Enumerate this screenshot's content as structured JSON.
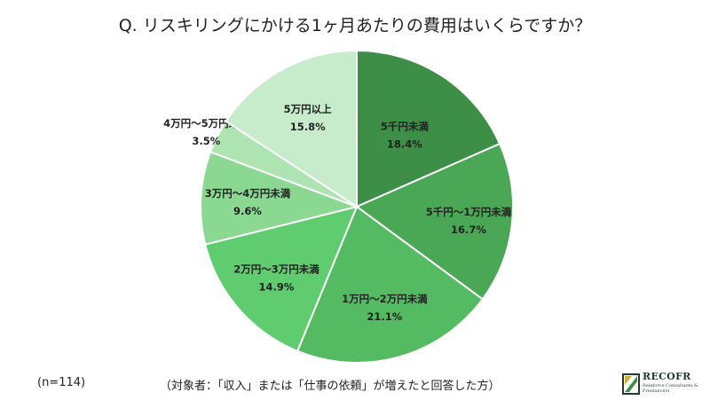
{
  "title": "Q. リスキリングにかける1ヶ月あたりの費用はいくらですか？",
  "footer": {
    "n": "(n=114)",
    "target": "（対象者：「収入」または「仕事の依頼」が増えたと回答した方）"
  },
  "logo": {
    "name": "RECOFR",
    "subtitle": "Reinforce Consultants & Freelancers"
  },
  "chart_data": {
    "type": "pie",
    "title": "Q. リスキリングにかける1ヶ月あたりの費用はいくらですか？",
    "start_angle_deg": 0,
    "direction": "clockwise",
    "slices": [
      {
        "label": "5千円未満",
        "value": 18.4,
        "value_label": "18.4%",
        "color": "#3d8f47"
      },
      {
        "label": "5千円～1万円未満",
        "value": 16.7,
        "value_label": "16.7%",
        "color": "#4aa755"
      },
      {
        "label": "1万円～2万円未満",
        "value": 21.1,
        "value_label": "21.1%",
        "color": "#55bb63"
      },
      {
        "label": "2万円～3万円未満",
        "value": 14.9,
        "value_label": "14.9%",
        "color": "#5fcc6f"
      },
      {
        "label": "3万円～4万円未満",
        "value": 9.6,
        "value_label": "9.6%",
        "color": "#8ad892"
      },
      {
        "label": "4万円～5万円未満",
        "value": 3.5,
        "value_label": "3.5%",
        "color": "#aee3b2"
      },
      {
        "label": "5万円以上",
        "value": 15.8,
        "value_label": "15.8%",
        "color": "#c7eccb"
      }
    ]
  }
}
